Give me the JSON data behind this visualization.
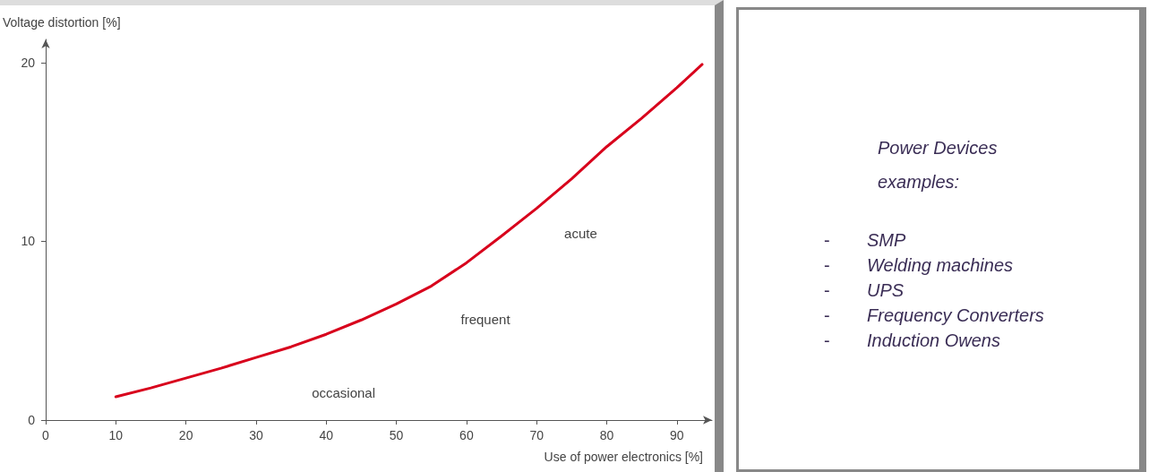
{
  "chart_data": [
    {
      "type": "line",
      "xlabel": "Use of power electronics [%]",
      "ylabel": "Voltage distortion [%]",
      "x": [
        10,
        15,
        20,
        25,
        30,
        35,
        40,
        45,
        50,
        55,
        60,
        65,
        70,
        75,
        80,
        85,
        90,
        93.6
      ],
      "series": [
        {
          "color": "#d8001c",
          "values": [
            1.3,
            1.8,
            2.35,
            2.9,
            3.5,
            4.1,
            4.8,
            5.6,
            6.5,
            7.5,
            8.8,
            10.3,
            11.85,
            13.5,
            15.3,
            16.9,
            18.6,
            19.9
          ]
        }
      ],
      "xlim": [
        0,
        95
      ],
      "xticks": [
        0,
        10,
        20,
        30,
        40,
        50,
        60,
        70,
        80,
        90
      ],
      "ylim": [
        0,
        21.3
      ],
      "yticks": [
        0,
        10,
        20
      ],
      "annotations": [
        "occasional",
        "frequent",
        "acute"
      ],
      "grid": false,
      "marker": "none",
      "line_style": "solid"
    },
    {
      "type": "other",
      "title": "Power Devices examples:",
      "annotations": [
        "- SMP",
        "- Welding machines",
        "- UPS",
        "- Frequency Converters",
        "- Induction Owens"
      ]
    }
  ]
}
